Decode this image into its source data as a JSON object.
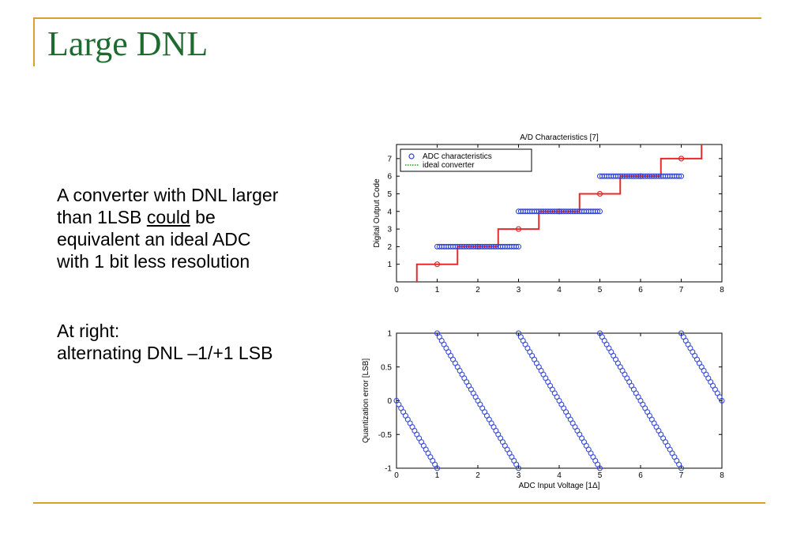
{
  "slide": {
    "title": "Large DNL",
    "para1": {
      "line1": "A converter with DNL larger",
      "line2_pre": "than 1LSB ",
      "line2_underlined": "could",
      "line2_post": " be",
      "line3": "equivalent an ideal ADC",
      "line4": "with 1 bit less resolution"
    },
    "para2": {
      "line1": "At right:",
      "line2": "alternating DNL –1/+1 LSB"
    }
  },
  "colors": {
    "title": "#1f6b2f",
    "rule": "#d9a02f",
    "adc_marker": "#2a3fd6",
    "ideal_line": "#e32b2b",
    "legend_ideal": "#1a9e1a"
  },
  "chart_data": [
    {
      "type": "line",
      "title": "A/D Characteristics [7]",
      "xlabel": "",
      "ylabel": "Digital Output Code",
      "xlim": [
        0,
        8
      ],
      "ylim": [
        0,
        7.8
      ],
      "xticks": [
        0,
        1,
        2,
        3,
        4,
        5,
        6,
        7,
        8
      ],
      "yticks": [
        1,
        2,
        3,
        4,
        5,
        6,
        7
      ],
      "legend_position": "top-left",
      "series": [
        {
          "name": "ADC characteristics",
          "marker": "circle",
          "segments": [
            {
              "x_from": 1.0,
              "x_to": 3.0,
              "y": 2
            },
            {
              "x_from": 3.0,
              "x_to": 5.0,
              "y": 4
            },
            {
              "x_from": 5.0,
              "x_to": 7.0,
              "y": 6
            }
          ]
        },
        {
          "name": "ideal converter",
          "steps_x": [
            0.5,
            1.5,
            2.5,
            3.5,
            4.5,
            5.5,
            6.5,
            7.5
          ],
          "steps_y": [
            0,
            1,
            2,
            3,
            4,
            5,
            6,
            7,
            7.8
          ],
          "markers": [
            {
              "x": 1,
              "y": 1
            },
            {
              "x": 2,
              "y": 2
            },
            {
              "x": 3,
              "y": 3
            },
            {
              "x": 4,
              "y": 4
            },
            {
              "x": 5,
              "y": 5
            },
            {
              "x": 6,
              "y": 6
            },
            {
              "x": 7,
              "y": 7
            }
          ]
        }
      ]
    },
    {
      "type": "scatter",
      "title": "",
      "xlabel": "ADC Input Voltage  [1Δ]",
      "ylabel": "Quantization error  [LSB]",
      "xlim": [
        0,
        8
      ],
      "ylim": [
        -1,
        1
      ],
      "xticks": [
        0,
        1,
        2,
        3,
        4,
        5,
        6,
        7,
        8
      ],
      "yticks": [
        -1,
        -0.5,
        0,
        0.5,
        1
      ],
      "series": [
        {
          "name": "",
          "marker": "circle",
          "segments": [
            {
              "x_from": 0,
              "x_to": 1,
              "y_from": 0,
              "y_to": -1
            },
            {
              "x_from": 1,
              "x_to": 3,
              "y_from": 1,
              "y_to": -1
            },
            {
              "x_from": 3,
              "x_to": 5,
              "y_from": 1,
              "y_to": -1
            },
            {
              "x_from": 5,
              "x_to": 7,
              "y_from": 1,
              "y_to": -1
            },
            {
              "x_from": 7,
              "x_to": 8,
              "y_from": 1,
              "y_to": 0
            }
          ]
        }
      ]
    }
  ]
}
